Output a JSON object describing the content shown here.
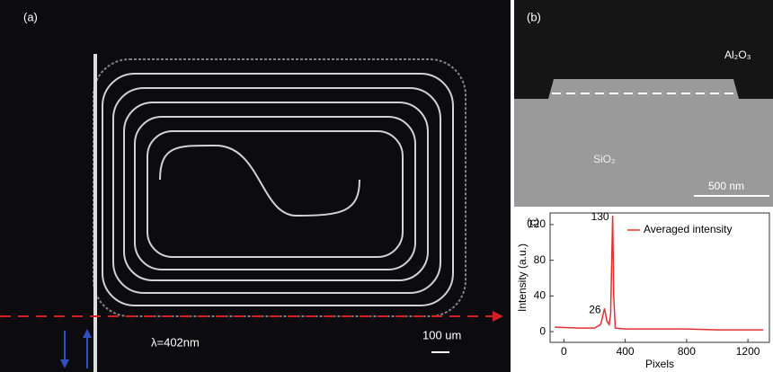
{
  "panel_a": {
    "label": "(a)",
    "wavelength": "λ=402nm",
    "scale": "100 um"
  },
  "panel_b": {
    "label": "(b)",
    "top_material": "Al₂O₃",
    "bottom_material": "SiO₂",
    "scale": "500 nm"
  },
  "chart_data": {
    "type": "line",
    "panel_label": "(c)",
    "x_label": "Pixels",
    "y_label": "Intensity (a.u.)",
    "x": [
      -60,
      100,
      200,
      240,
      265,
      280,
      295,
      305,
      318,
      325,
      335,
      400,
      600,
      800,
      1000,
      1300
    ],
    "series": [
      {
        "name": "Averaged intensity",
        "color": "#e03030",
        "values": [
          5,
          4,
          4,
          8,
          26,
          12,
          8,
          20,
          130,
          40,
          4,
          3,
          3,
          3,
          2,
          2
        ]
      }
    ],
    "annotations": [
      {
        "text": "130",
        "x": 318,
        "y": 130
      },
      {
        "text": "26",
        "x": 265,
        "y": 26
      }
    ],
    "xlim": [
      -90,
      1340
    ],
    "ylim": [
      -12,
      133
    ],
    "xticks": [
      0,
      400,
      800,
      1200
    ],
    "yticks": [
      0,
      40,
      80,
      120
    ],
    "legend": "top-right"
  }
}
